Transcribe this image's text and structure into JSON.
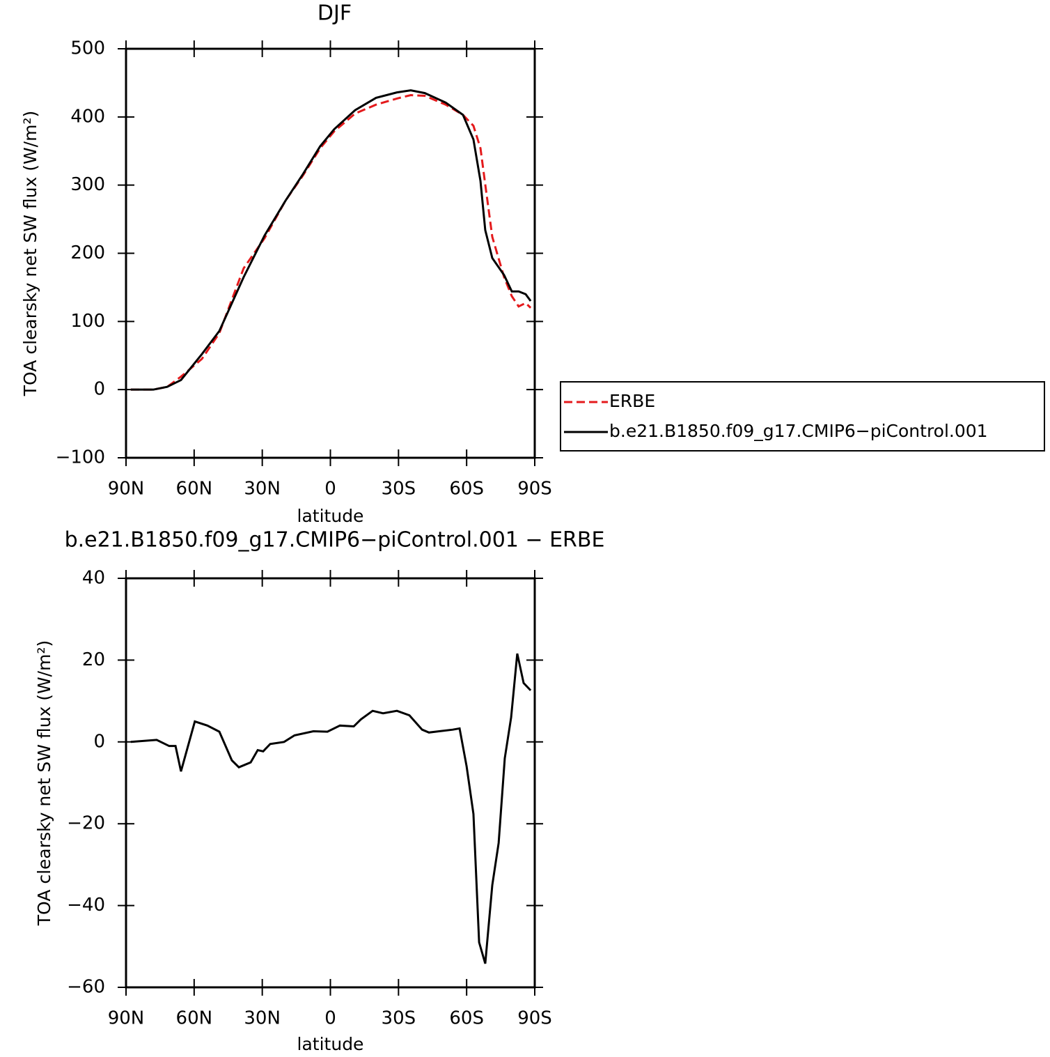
{
  "chart_data": [
    {
      "type": "line",
      "title": "DJF",
      "xlabel": "latitude",
      "ylabel": "TOA clearsky net SW flux (W/m²)",
      "x": [
        87.9,
        78.0,
        71.9,
        65.8,
        56.6,
        48.9,
        38.2,
        29.0,
        19.8,
        12.1,
        4.5,
        -1.7,
        -10.9,
        -20.1,
        -29.3,
        -35.4,
        -41.6,
        -50.8,
        -58.4,
        -63.0,
        -66.1,
        -68.2,
        -71.3,
        -76.5,
        -79.9,
        -82.9,
        -86.0,
        -88.2
      ],
      "series": [
        {
          "name": "ERBE",
          "color": "#e41a1c",
          "linestyle": "dashed",
          "values": [
            0,
            0,
            4,
            19,
            45,
            83,
            178,
            222,
            277,
            314,
            354,
            379,
            405,
            418,
            427,
            432,
            431,
            418,
            403,
            387,
            354,
            301,
            224,
            165,
            137,
            122,
            127,
            120
          ]
        },
        {
          "name": "b.e21.B1850.f09_g17.CMIP6−piControl.001",
          "color": "#000000",
          "linestyle": "solid",
          "values": [
            0,
            0,
            4,
            14,
            52,
            86,
            165,
            226,
            277,
            316,
            357,
            382,
            410,
            428,
            436,
            439,
            435,
            421,
            403,
            367,
            306,
            234,
            193,
            168,
            144,
            144,
            140,
            130
          ]
        }
      ],
      "xlim": [
        90,
        -90
      ],
      "xticks": [
        {
          "value": 90,
          "label": "90N"
        },
        {
          "value": 60,
          "label": "60N"
        },
        {
          "value": 30,
          "label": "30N"
        },
        0,
        {
          "value": -30,
          "label": "30S"
        },
        {
          "value": -60,
          "label": "60S"
        },
        {
          "value": -90,
          "label": "90S"
        }
      ],
      "ylim": [
        -100,
        500
      ],
      "yticks": [
        {
          "value": -100,
          "label": "−100"
        },
        0,
        100,
        200,
        300,
        400,
        500
      ],
      "legend": "right"
    },
    {
      "type": "line",
      "title": "b.e21.B1850.f09_g17.CMIP6−piControl.001  −  ERBE",
      "xlabel": "latitude",
      "ylabel": "TOA clearsky net SW flux (W/m²)",
      "x": [
        87.9,
        76.5,
        71.0,
        68.2,
        65.8,
        59.7,
        54.2,
        48.9,
        43.4,
        40.3,
        35.1,
        32.0,
        29.6,
        26.5,
        20.4,
        15.8,
        7.5,
        1.3,
        -4.2,
        -10.3,
        -13.4,
        -18.6,
        -23.2,
        -29.3,
        -34.8,
        -40.4,
        -43.4,
        -53.9,
        -56.9,
        -60.0,
        -63.0,
        -65.5,
        -68.2,
        -71.3,
        -74.1,
        -76.8,
        -79.6,
        -82.3,
        -85.1,
        -88.2
      ],
      "values": [
        0,
        0.5,
        -1,
        -1,
        -7.2,
        5,
        4,
        2.5,
        -4.5,
        -6.2,
        -5,
        -2,
        -2.3,
        -0.5,
        0,
        1.6,
        2.6,
        2.5,
        4,
        3.8,
        5.5,
        7.6,
        7,
        7.6,
        6.5,
        3,
        2.3,
        3,
        3.3,
        -6,
        -17.6,
        -49,
        -54.2,
        -35,
        -24.7,
        -4,
        6,
        21.6,
        14.4,
        12.6
      ],
      "color": "#000000",
      "xlim": [
        90,
        -90
      ],
      "xticks": [
        {
          "value": 90,
          "label": "90N"
        },
        {
          "value": 60,
          "label": "60N"
        },
        {
          "value": 30,
          "label": "30N"
        },
        0,
        {
          "value": -30,
          "label": "30S"
        },
        {
          "value": -60,
          "label": "60S"
        },
        {
          "value": -90,
          "label": "90S"
        }
      ],
      "ylim": [
        -60,
        40
      ],
      "yticks": [
        {
          "value": -60,
          "label": "−60"
        },
        {
          "value": -40,
          "label": "−40"
        },
        {
          "value": -20,
          "label": "−20"
        },
        0,
        20,
        40
      ]
    }
  ]
}
